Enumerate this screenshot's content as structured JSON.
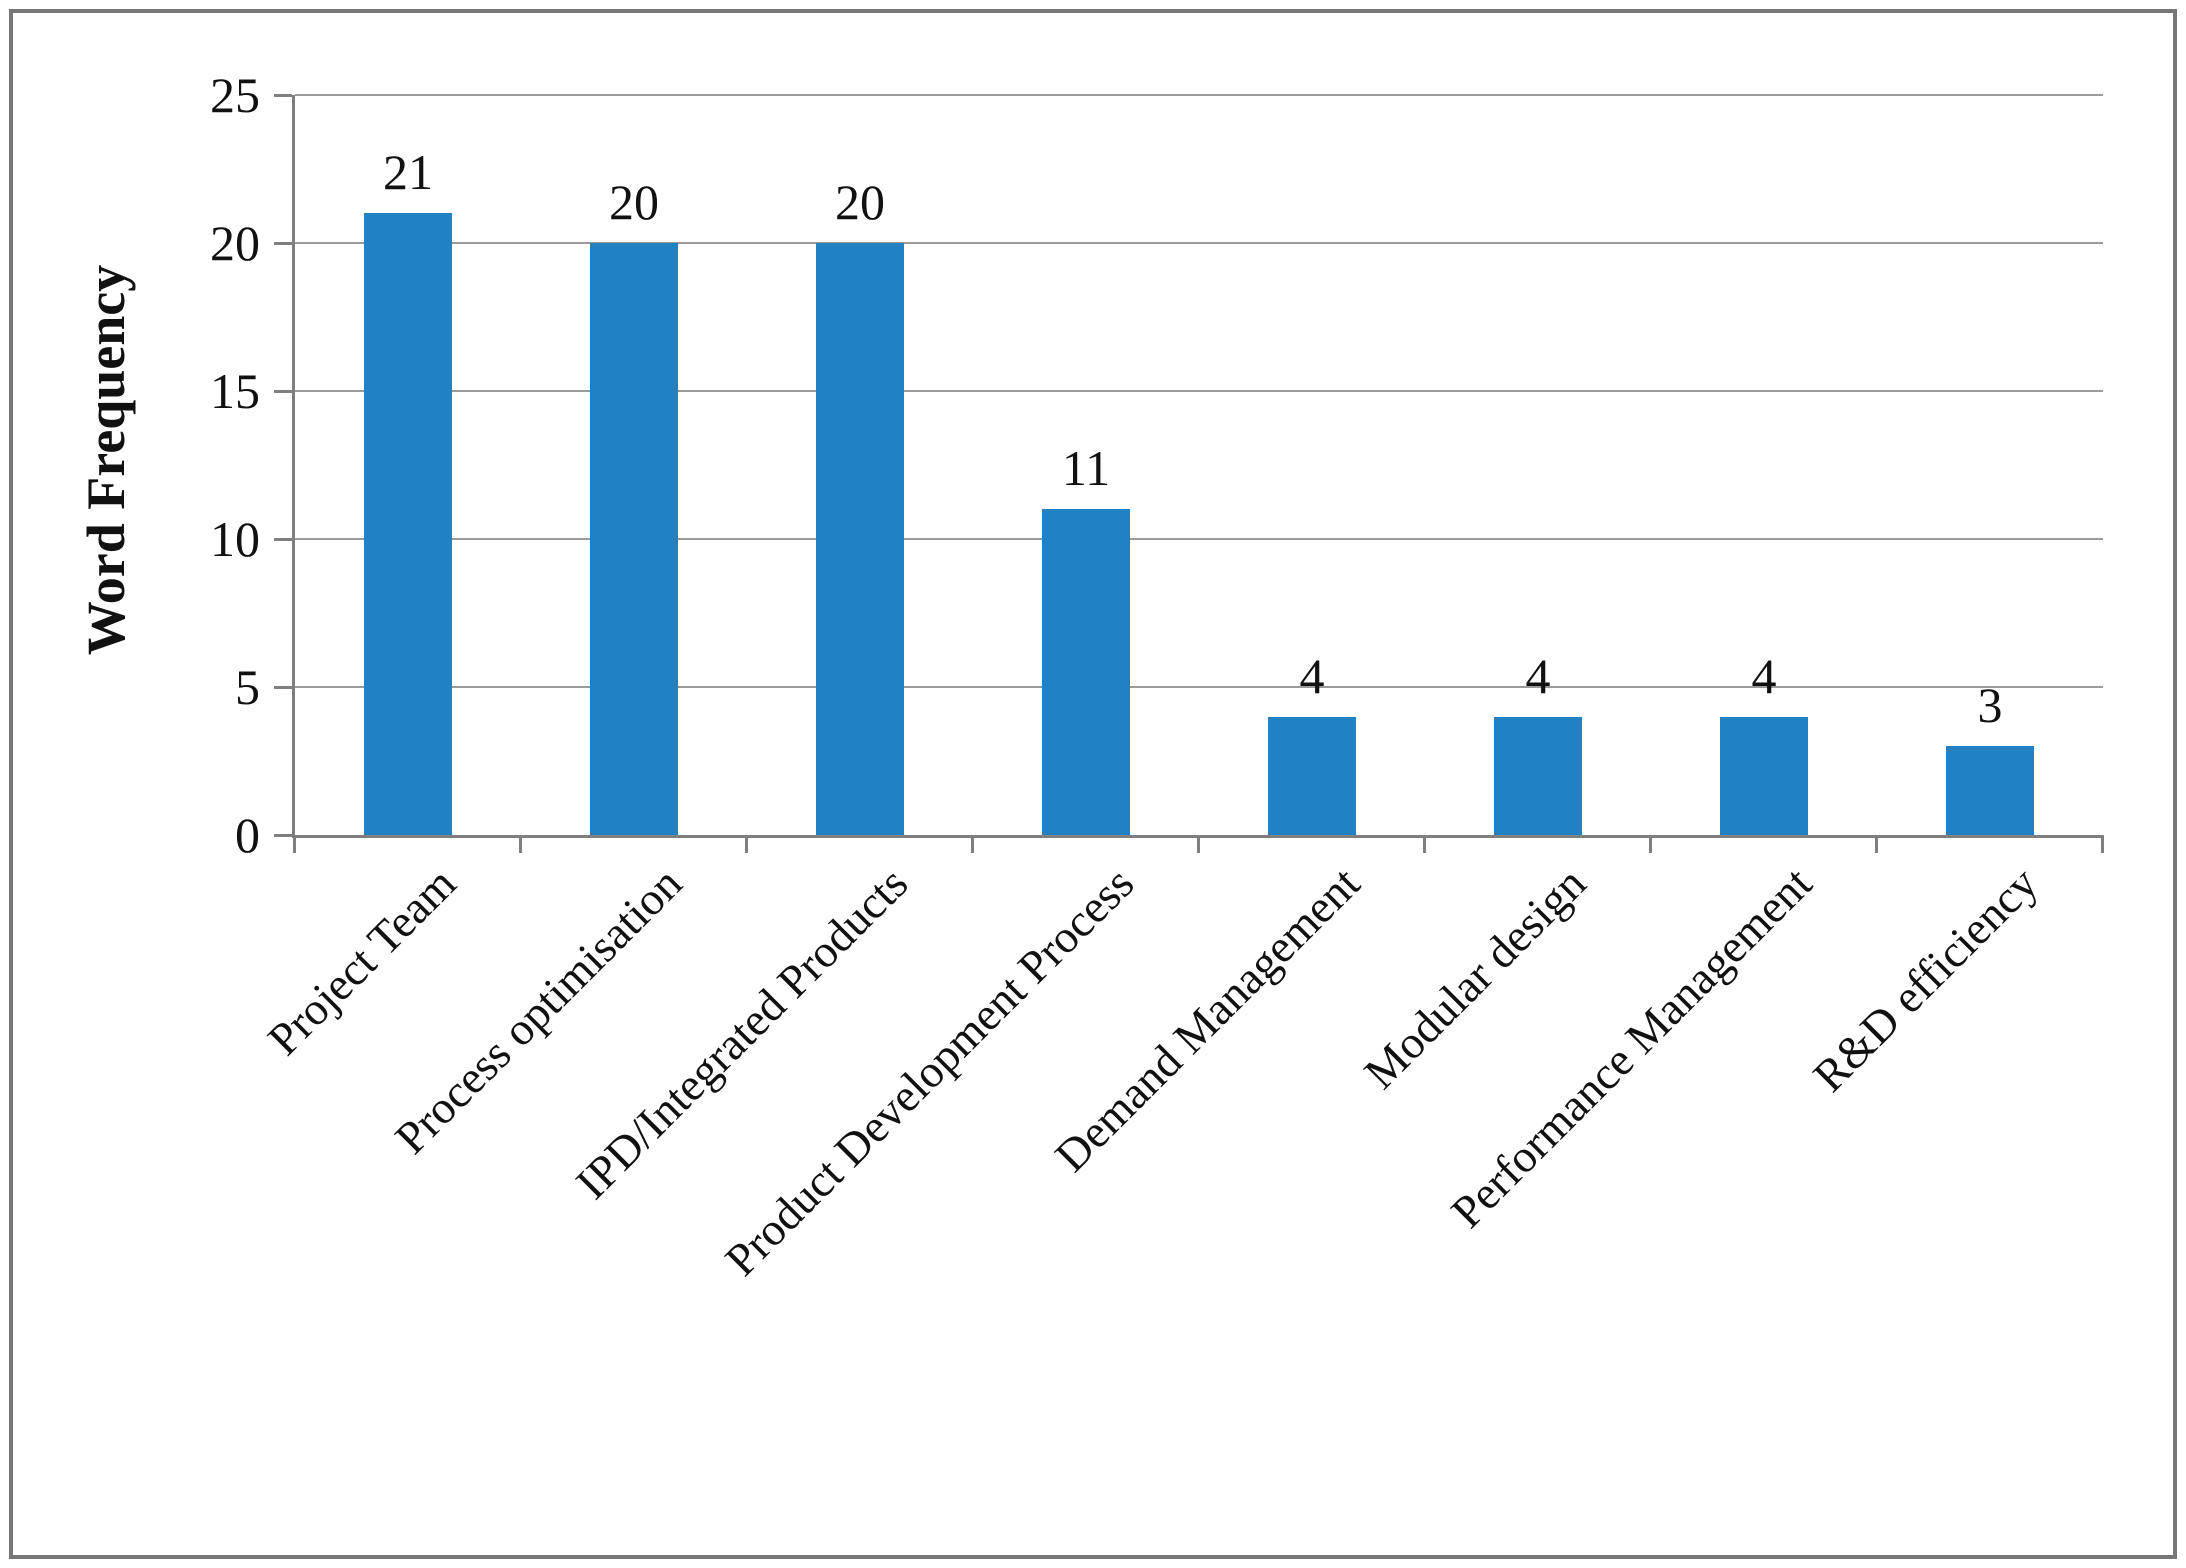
{
  "chart_data": {
    "type": "bar",
    "title": "",
    "ylabel": "Word Frequency",
    "xlabel": "",
    "categories": [
      "Project Team",
      "Process optimisation",
      "IPD/Integrated Products",
      "Product Development Process",
      "Demand Management",
      "Modular design",
      "Performance Management",
      "R&D efficiency"
    ],
    "values": [
      21,
      20,
      20,
      11,
      4,
      4,
      4,
      3
    ],
    "data_labels": [
      "21",
      "20",
      "20",
      "11",
      "4",
      "4",
      "4",
      "3"
    ],
    "ylim": [
      0,
      25
    ],
    "yticks": [
      0,
      5,
      10,
      15,
      20,
      25
    ],
    "ytick_labels": [
      "0",
      "5",
      "10",
      "15",
      "20",
      "25"
    ],
    "grid": "horizontal gridlines at each y tick",
    "legend": "none",
    "category_label_rotation_deg": -45,
    "colors": {
      "bar": "#2281c3",
      "axis": "#7f7f7f",
      "gridline": "#9a9a9a",
      "frame": "#777777",
      "text": "#111111"
    }
  }
}
